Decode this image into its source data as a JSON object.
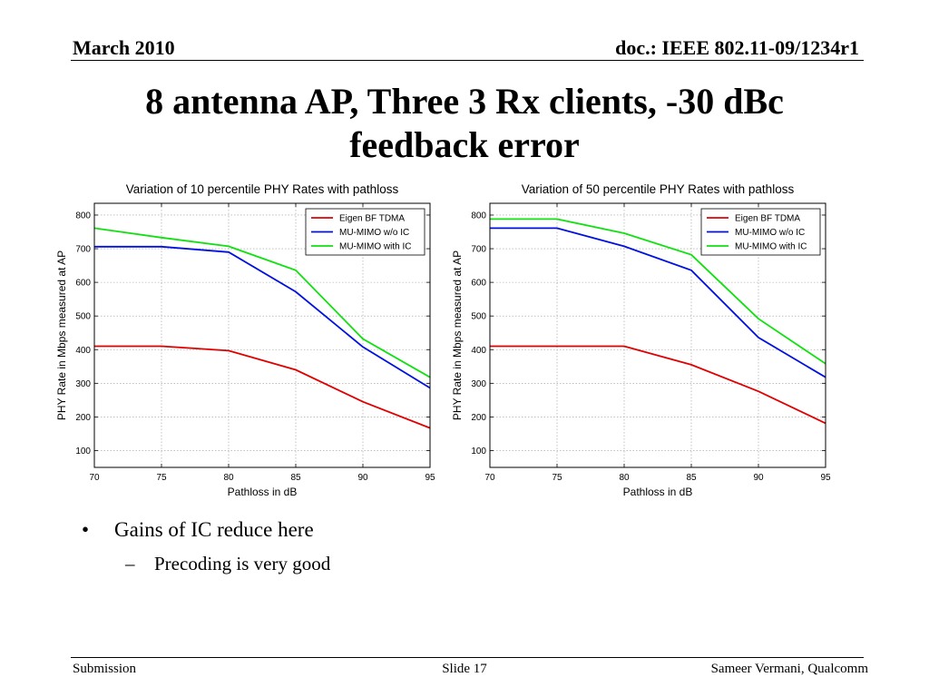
{
  "header": {
    "date": "March 2010",
    "doc_id": "doc.: IEEE 802.11-09/1234r1"
  },
  "title": {
    "line1": "8 antenna AP, Three 3 Rx clients, -30 dBc",
    "line2": "feedback error"
  },
  "chart_data": [
    {
      "type": "line",
      "title": "Variation of 10 percentile PHY Rates with pathloss",
      "xlabel": "Pathloss in dB",
      "ylabel": "PHY Rate in Mbps measured at AP",
      "xlim": [
        70,
        95
      ],
      "ylim": [
        50,
        835
      ],
      "x_ticks": [
        70,
        75,
        80,
        85,
        90,
        95
      ],
      "y_ticks": [
        100,
        200,
        300,
        400,
        500,
        600,
        700,
        800
      ],
      "grid": true,
      "legend_position": "top-right",
      "x": [
        70,
        75,
        80,
        85,
        90,
        95
      ],
      "series": [
        {
          "name": "Eigen BF TDMA",
          "color": "#e00000",
          "values": [
            410,
            410,
            397,
            340,
            245,
            167
          ]
        },
        {
          "name": "MU-MIMO w/o IC",
          "color": "#0010e0",
          "values": [
            706,
            706,
            690,
            572,
            408,
            286
          ]
        },
        {
          "name": "MU-MIMO with IC",
          "color": "#10e010",
          "values": [
            761,
            733,
            707,
            636,
            432,
            318
          ]
        }
      ]
    },
    {
      "type": "line",
      "title": "Variation of 50 percentile PHY Rates with pathloss",
      "xlabel": "Pathloss in dB",
      "ylabel": "PHY Rate in Mbps measured at AP",
      "xlim": [
        70,
        95
      ],
      "ylim": [
        50,
        835
      ],
      "x_ticks": [
        70,
        75,
        80,
        85,
        90,
        95
      ],
      "y_ticks": [
        100,
        200,
        300,
        400,
        500,
        600,
        700,
        800
      ],
      "grid": true,
      "legend_position": "top-right",
      "x": [
        70,
        75,
        80,
        85,
        90,
        95
      ],
      "series": [
        {
          "name": "Eigen BF TDMA",
          "color": "#e00000",
          "values": [
            410,
            410,
            410,
            355,
            276,
            181
          ]
        },
        {
          "name": "MU-MIMO w/o IC",
          "color": "#0010e0",
          "values": [
            761,
            761,
            707,
            636,
            436,
            318
          ]
        },
        {
          "name": "MU-MIMO with IC",
          "color": "#10e010",
          "values": [
            788,
            788,
            746,
            682,
            492,
            358
          ]
        }
      ]
    }
  ],
  "bullets": {
    "b1_marker": "•",
    "b1_text": "Gains of IC reduce here",
    "b2_marker": "–",
    "b2_text": "Precoding is very good"
  },
  "footer": {
    "left": "Submission",
    "center": "Slide 17",
    "right": "Sameer Vermani, Qualcomm"
  }
}
